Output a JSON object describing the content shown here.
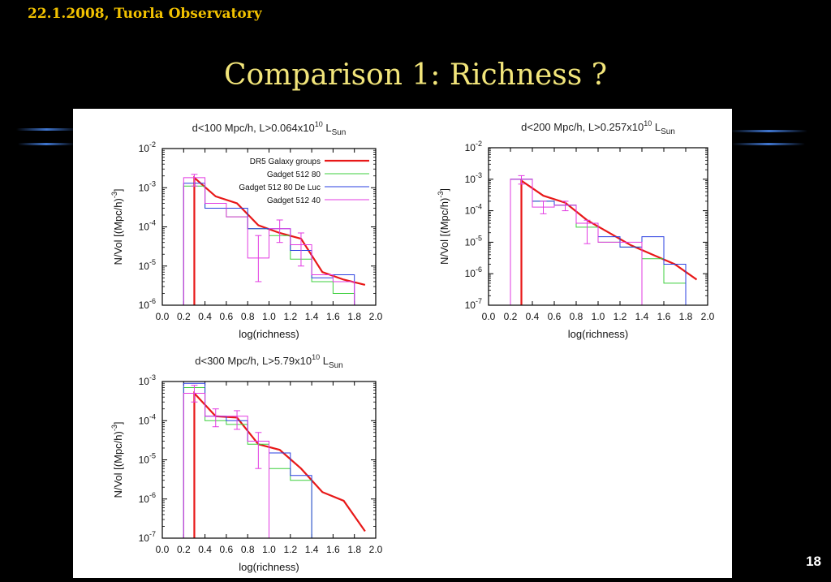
{
  "header": {
    "text": "22.1.2008, Tuorla Observatory"
  },
  "title": "Comparison 1: Richness ?",
  "page_number": "18",
  "colors": {
    "background": "#000000",
    "header": "#f2c200",
    "title": "#f2e57a",
    "dr5": "#e81818",
    "g80": "#3ccf3c",
    "g80d": "#2a3fe0",
    "g40": "#e23ae2"
  },
  "chart_data": [
    {
      "type": "line",
      "title": "d<100 Mpc/h,  L>0.064x10",
      "title_sup": "10",
      "title_tail": " L",
      "title_sub": "Sun",
      "xlabel": "log(richness)",
      "ylabel": "N/Vol [(Mpc/h)",
      "ylabel_sup": "-3",
      "ylabel_tail": "]",
      "xlim": [
        0.0,
        2.0
      ],
      "ylim_exp": [
        -6,
        -2
      ],
      "yscale": "log",
      "xticks": [
        "0.0",
        "0.2",
        "0.4",
        "0.6",
        "0.8",
        "1.0",
        "1.2",
        "1.4",
        "1.6",
        "1.8",
        "2.0"
      ],
      "yticks": [
        {
          "exp": "-6"
        },
        {
          "exp": "-5"
        },
        {
          "exp": "-4"
        },
        {
          "exp": "-3"
        },
        {
          "exp": "-2"
        }
      ],
      "legend_position": "top-right",
      "legend": [
        "DR5 Galaxy groups",
        "Gadget 512 80",
        "Gadget 512 80 De Luc",
        "Gadget 512 40"
      ],
      "series": [
        {
          "name": "DR5 Galaxy groups",
          "style": "line",
          "x": [
            0.3,
            0.5,
            0.7,
            0.9,
            1.1,
            1.3,
            1.5,
            1.7,
            1.9
          ],
          "y": [
            0.0018,
            0.0006,
            0.0004,
            0.00011,
            7e-05,
            5e-05,
            7e-06,
            4.5e-06,
            3.3e-06
          ]
        },
        {
          "name": "Gadget 512 80",
          "style": "step",
          "edges": [
            0.2,
            0.3,
            0.4,
            0.6,
            0.8,
            1.0,
            1.2,
            1.4,
            1.6,
            1.8
          ],
          "y": [
            0.0011,
            0.0011,
            0.0003,
            0.00018,
            9e-05,
            6e-05,
            1.5e-05,
            4e-06,
            2e-06
          ]
        },
        {
          "name": "Gadget 512 80 De Luc",
          "style": "step",
          "edges": [
            0.2,
            0.3,
            0.4,
            0.6,
            0.8,
            1.0,
            1.2,
            1.4,
            1.6,
            1.8
          ],
          "y": [
            0.0013,
            0.0013,
            0.0003,
            0.0003,
            9e-05,
            9e-05,
            2.5e-05,
            5e-06,
            6e-06
          ]
        },
        {
          "name": "Gadget 512 40",
          "style": "step",
          "edges": [
            0.2,
            0.3,
            0.4,
            0.6,
            0.8,
            1.0,
            1.2,
            1.4,
            1.6,
            1.8
          ],
          "y": [
            0.0018,
            0.0018,
            0.0004,
            0.00018,
            1.6e-05,
            9e-05,
            3.5e-05,
            6e-06,
            4e-06
          ]
        }
      ],
      "errorbars": [
        {
          "x": 0.3,
          "lo": 0.0011,
          "hi": 0.0022
        },
        {
          "x": 0.9,
          "lo": 4e-06,
          "hi": 6e-05
        },
        {
          "x": 1.1,
          "lo": 4e-05,
          "hi": 0.00015
        },
        {
          "x": 1.3,
          "lo": 1e-05,
          "hi": 7e-05
        }
      ]
    },
    {
      "type": "line",
      "title": "d<200 Mpc/h,  L>0.257x10",
      "title_sup": "10",
      "title_tail": " L",
      "title_sub": "Sun",
      "xlabel": "log(richness)",
      "ylabel": "N/Vol [(Mpc/h)",
      "ylabel_sup": "-3",
      "ylabel_tail": "]",
      "xlim": [
        0.0,
        2.0
      ],
      "ylim_exp": [
        -7,
        -2
      ],
      "yscale": "log",
      "xticks": [
        "0.0",
        "0.2",
        "0.4",
        "0.6",
        "0.8",
        "1.0",
        "1.2",
        "1.4",
        "1.6",
        "1.8",
        "2.0"
      ],
      "yticks": [
        {
          "exp": "-7"
        },
        {
          "exp": "-6"
        },
        {
          "exp": "-5"
        },
        {
          "exp": "-4"
        },
        {
          "exp": "-3"
        },
        {
          "exp": "-2"
        }
      ],
      "series": [
        {
          "name": "DR5 Galaxy groups",
          "style": "line",
          "x": [
            0.3,
            0.5,
            0.7,
            0.9,
            1.1,
            1.3,
            1.5,
            1.7,
            1.9
          ],
          "y": [
            0.0009,
            0.0003,
            0.00018,
            5e-05,
            2e-05,
            8e-06,
            4e-06,
            2e-06,
            6.5e-07
          ]
        },
        {
          "name": "Gadget 512 80",
          "style": "step",
          "edges": [
            0.2,
            0.3,
            0.4,
            0.6,
            0.8,
            1.0,
            1.2,
            1.4,
            1.6,
            1.8
          ],
          "y": [
            0.001,
            0.001,
            0.0002,
            0.00015,
            3e-05,
            1e-05,
            7e-06,
            3e-06,
            5e-07
          ]
        },
        {
          "name": "Gadget 512 80 De Luc",
          "style": "step",
          "edges": [
            0.2,
            0.3,
            0.4,
            0.6,
            0.8,
            1.0,
            1.2,
            1.4,
            1.6,
            1.8
          ],
          "y": [
            0.001,
            0.001,
            0.0002,
            0.00015,
            4e-05,
            1.5e-05,
            7e-06,
            1.5e-05,
            2e-06
          ]
        },
        {
          "name": "Gadget 512 40",
          "style": "step",
          "edges": [
            0.2,
            0.3,
            0.4,
            0.6,
            0.8,
            1.0,
            1.2,
            1.4,
            1.6,
            1.8
          ],
          "y": [
            0.001,
            0.001,
            0.00013,
            0.00015,
            4e-05,
            1e-05,
            1e-05,
            1e-07,
            1e-07
          ]
        }
      ],
      "errorbars": [
        {
          "x": 0.3,
          "lo": 0.0007,
          "hi": 0.0013
        },
        {
          "x": 0.5,
          "lo": 8e-05,
          "hi": 0.0002
        },
        {
          "x": 0.7,
          "lo": 0.0001,
          "hi": 0.0002
        },
        {
          "x": 0.9,
          "lo": 9e-06,
          "hi": 5e-05
        }
      ]
    },
    {
      "type": "line",
      "title": "d<300 Mpc/h,  L>5.79x10",
      "title_sup": "10",
      "title_tail": " L",
      "title_sub": "Sun",
      "xlabel": "log(richness)",
      "ylabel": "N/Vol [(Mpc/h)",
      "ylabel_sup": "-3",
      "ylabel_tail": "]",
      "xlim": [
        0.0,
        2.0
      ],
      "ylim_exp": [
        -7,
        -3
      ],
      "yscale": "log",
      "xticks": [
        "0.0",
        "0.2",
        "0.4",
        "0.6",
        "0.8",
        "1.0",
        "1.2",
        "1.4",
        "1.6",
        "1.8",
        "2.0"
      ],
      "yticks": [
        {
          "exp": "-7"
        },
        {
          "exp": "-6"
        },
        {
          "exp": "-5"
        },
        {
          "exp": "-4"
        },
        {
          "exp": "-3"
        }
      ],
      "series": [
        {
          "name": "DR5 Galaxy groups",
          "style": "line",
          "x": [
            0.3,
            0.5,
            0.7,
            0.9,
            1.1,
            1.3,
            1.5,
            1.7,
            1.9
          ],
          "y": [
            0.0005,
            0.00013,
            0.00012,
            2.5e-05,
            1.8e-05,
            6e-06,
            1.5e-06,
            9e-07,
            1.5e-07
          ]
        },
        {
          "name": "Gadget 512 80",
          "style": "step",
          "edges": [
            0.2,
            0.3,
            0.4,
            0.6,
            0.8,
            1.0,
            1.2,
            1.4
          ],
          "y": [
            0.0007,
            0.0007,
            0.0001,
            8e-05,
            2.5e-05,
            6e-06,
            3e-06
          ]
        },
        {
          "name": "Gadget 512 80 De Luc",
          "style": "step",
          "edges": [
            0.2,
            0.3,
            0.4,
            0.6,
            0.8,
            1.0,
            1.2,
            1.4
          ],
          "y": [
            0.0009,
            0.0009,
            0.00013,
            0.0001,
            3e-05,
            1.5e-05,
            4e-06
          ]
        },
        {
          "name": "Gadget 512 40",
          "style": "step",
          "edges": [
            0.2,
            0.3,
            0.4,
            0.6,
            0.8,
            1.0
          ],
          "y": [
            0.0005,
            0.0005,
            0.00013,
            0.00013,
            3e-05
          ]
        }
      ],
      "errorbars": [
        {
          "x": 0.3,
          "lo": 0.0003,
          "hi": 0.0008
        },
        {
          "x": 0.5,
          "lo": 7e-05,
          "hi": 0.0002
        },
        {
          "x": 0.7,
          "lo": 6e-05,
          "hi": 0.00018
        },
        {
          "x": 0.9,
          "lo": 6e-06,
          "hi": 5e-05
        }
      ]
    }
  ]
}
